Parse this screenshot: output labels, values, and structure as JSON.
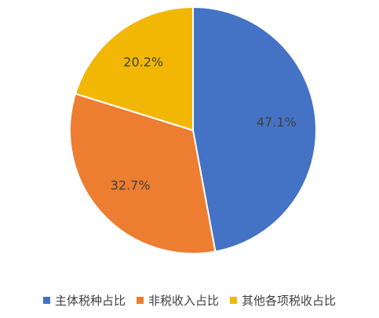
{
  "chart_data": {
    "type": "pie",
    "categories": [
      "主体税种占比",
      "非税收入占比",
      "其他各项税收占比"
    ],
    "values": [
      47.1,
      32.7,
      20.2
    ],
    "labels": [
      "47.1%",
      "32.7%",
      "20.2%"
    ],
    "colors": [
      "#4472c4",
      "#ed7d31",
      "#f2b705"
    ],
    "legend_position": "bottom",
    "start_angle": "12 o'clock",
    "direction": "clockwise"
  }
}
